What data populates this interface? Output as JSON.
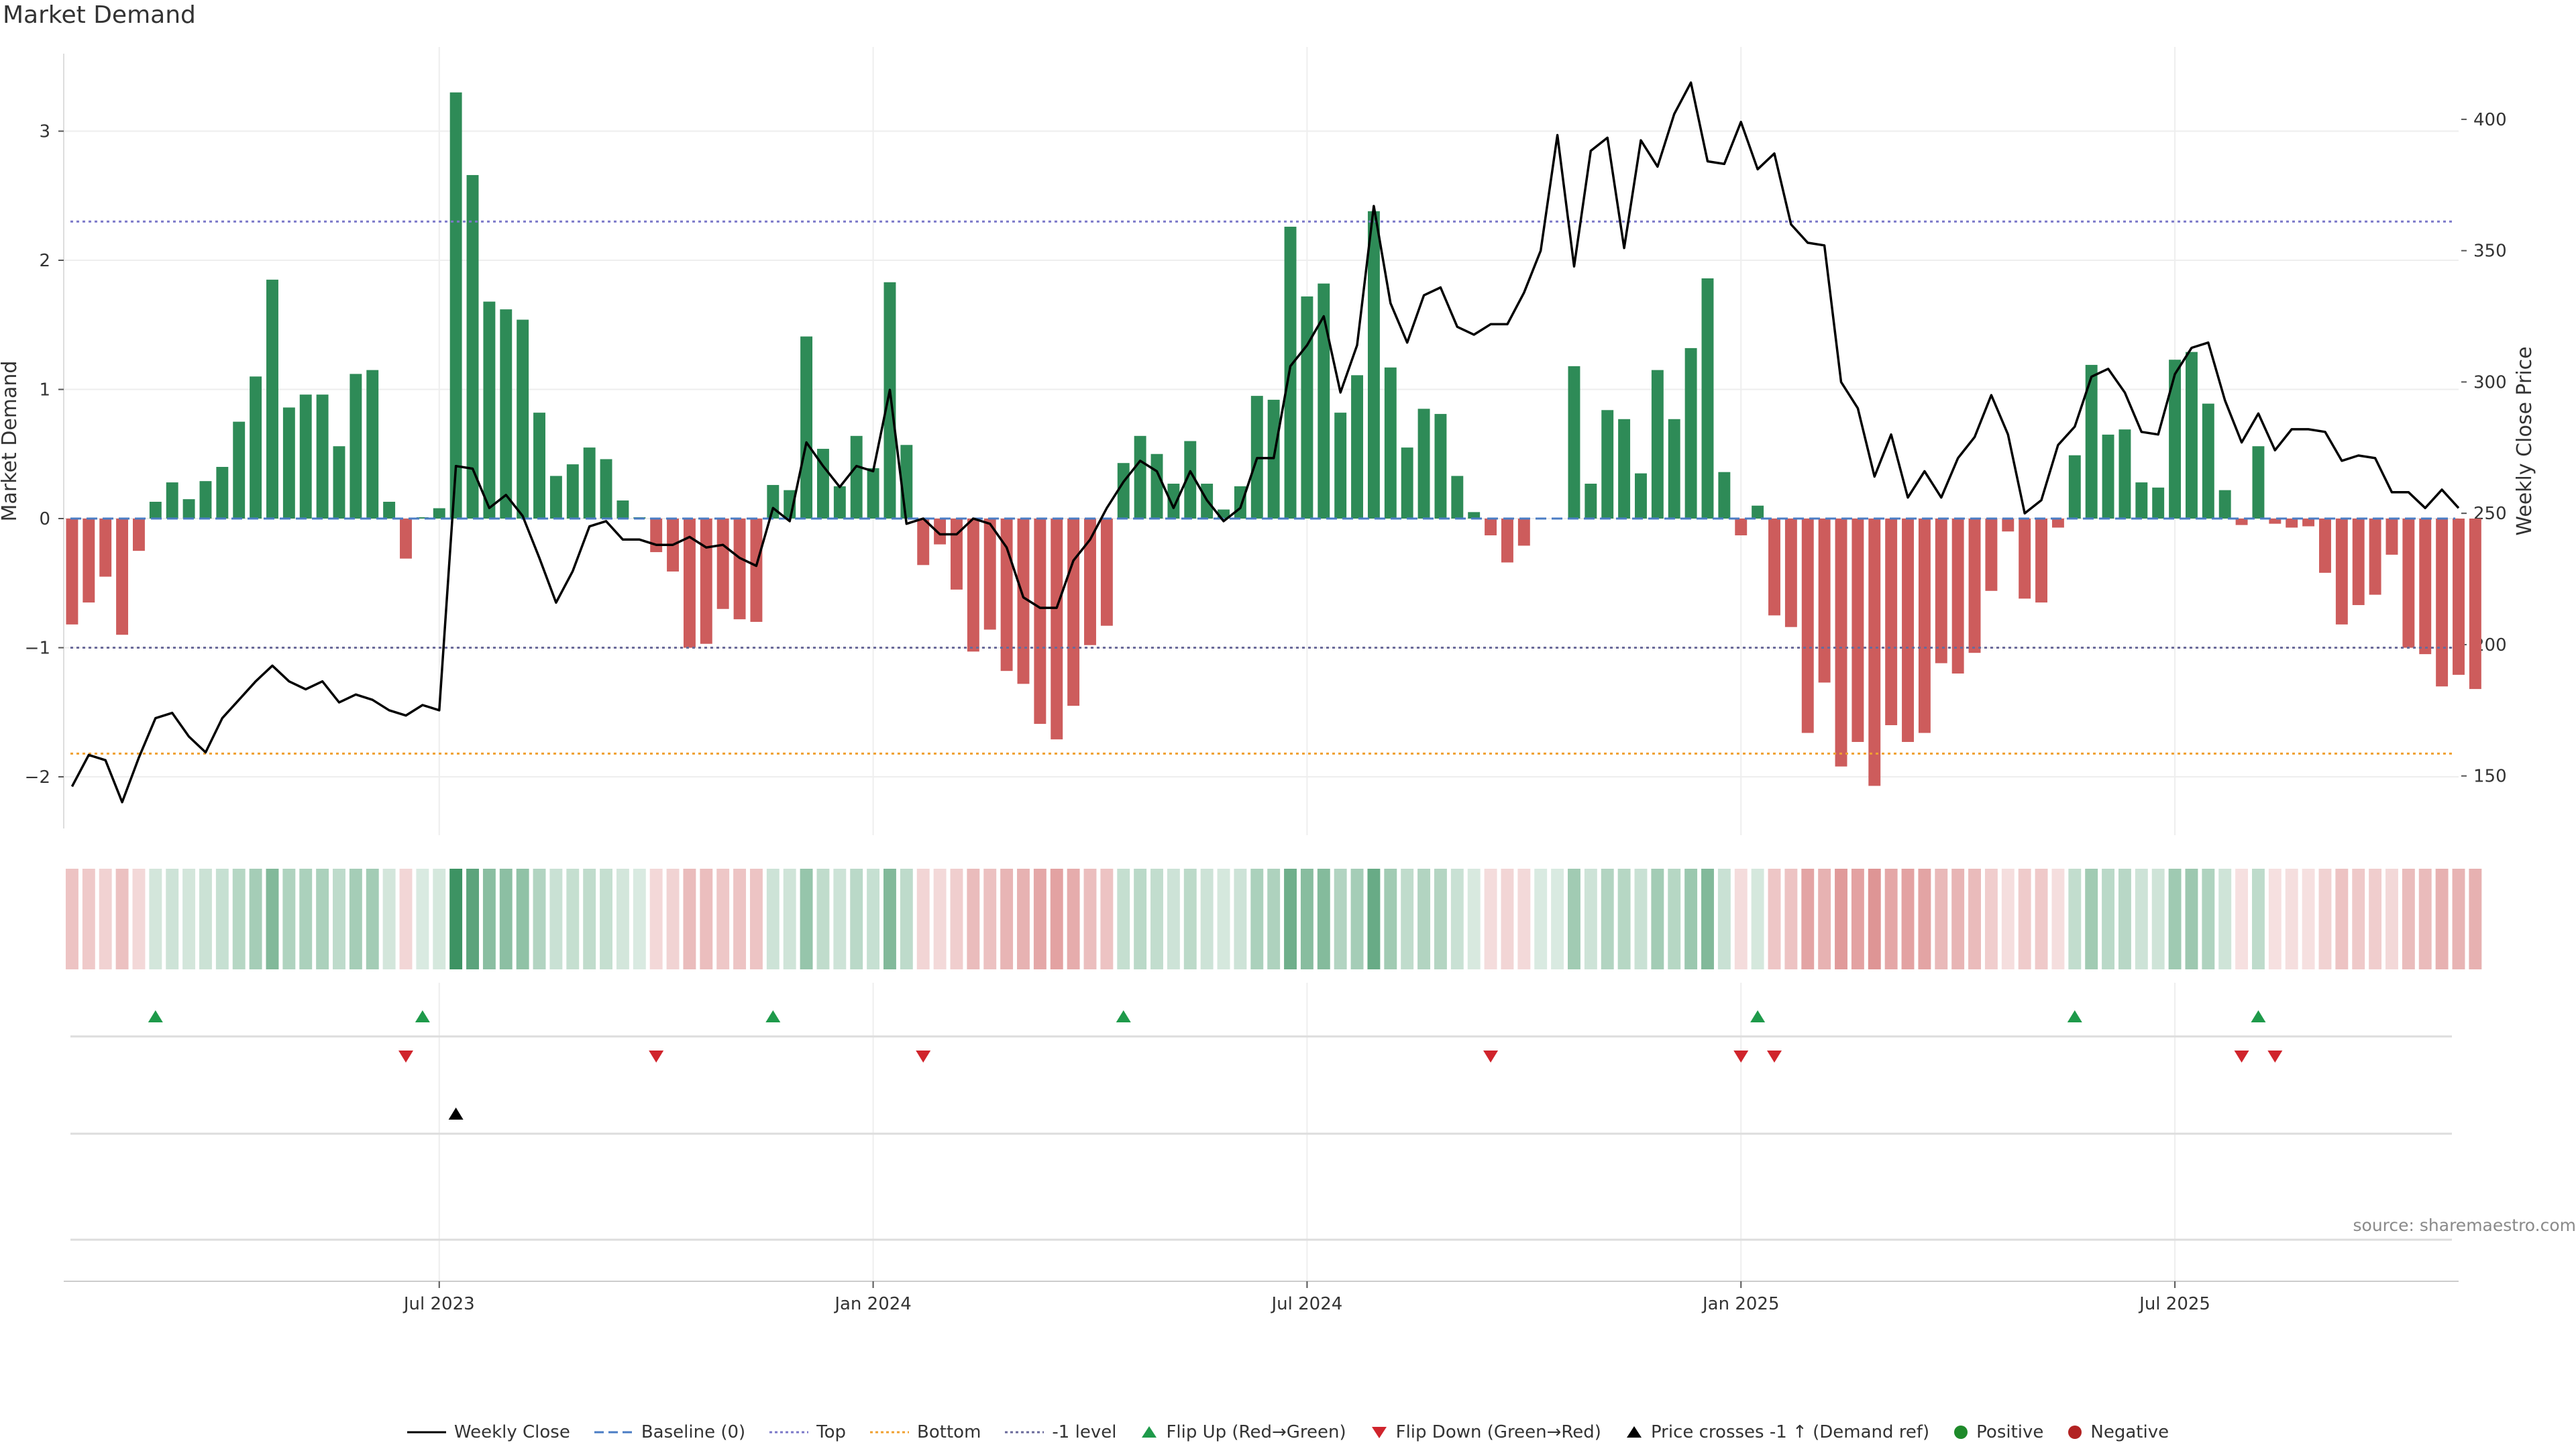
{
  "title": "Market Demand",
  "source": "source: sharemaestro.com",
  "legend": [
    {
      "label": "Weekly Close",
      "kind": "line-solid",
      "color": "#000000"
    },
    {
      "label": "Baseline (0)",
      "kind": "line-dashed",
      "color": "#4a7cc4"
    },
    {
      "label": "Top",
      "kind": "line-dotted",
      "color": "#7b78c9"
    },
    {
      "label": "Bottom",
      "kind": "line-dotted",
      "color": "#f0a030"
    },
    {
      "label": "-1 level",
      "kind": "line-dotted",
      "color": "#6a6a9a"
    },
    {
      "label": "Flip Up (Red→Green)",
      "kind": "tri-up",
      "color": "#1e9a4a"
    },
    {
      "label": "Flip Down (Green→Red)",
      "kind": "tri-down",
      "color": "#d0242c"
    },
    {
      "label": "Price crosses -1 ↑ (Demand ref)",
      "kind": "tri-up",
      "color": "#000000"
    },
    {
      "label": "Positive",
      "kind": "dot",
      "color": "#1e8a2a"
    },
    {
      "label": "Negative",
      "kind": "dot",
      "color": "#b22222"
    }
  ],
  "chart_data": {
    "type": "bar",
    "title": "Market Demand",
    "ylabel": "Market Demand",
    "y2label": "Weekly Close Price",
    "ylim": [
      -2.4,
      3.6
    ],
    "yticks": [
      -2,
      -1,
      0,
      1,
      2,
      3
    ],
    "ytick_labels": [
      "−2",
      "−1",
      "0",
      "1",
      "2",
      "3"
    ],
    "y2lim": [
      130,
      425
    ],
    "y2ticks": [
      150,
      200,
      250,
      300,
      350,
      400
    ],
    "xlim": [
      0,
      143.5
    ],
    "xticks": [
      {
        "i": 22,
        "label": "Jul 2023"
      },
      {
        "i": 48,
        "label": "Jan 2024"
      },
      {
        "i": 74,
        "label": "Jul 2024"
      },
      {
        "i": 100,
        "label": "Jan 2025"
      },
      {
        "i": 126,
        "label": "Jul 2025"
      }
    ],
    "ref_lines": {
      "top": 2.3,
      "minus1": -1.0,
      "bottom": -1.82
    },
    "colors": {
      "positive": "#2e8b57",
      "negative": "#cd5c5c",
      "price": "#000000",
      "baseline": "#4a7cc4",
      "top": "#7b78c9",
      "bottom": "#f0a030",
      "minus1": "#6a6a9a",
      "flip_up": "#1e9a4a",
      "flip_down": "#d0242c",
      "cross": "#000000"
    },
    "demand": [
      -0.82,
      -0.65,
      -0.45,
      -0.9,
      -0.25,
      0.13,
      0.28,
      0.15,
      0.29,
      0.4,
      0.75,
      1.1,
      1.85,
      0.86,
      0.96,
      0.96,
      0.56,
      1.12,
      1.15,
      0.13,
      -0.31,
      0.01,
      0.08,
      3.3,
      2.66,
      1.68,
      1.62,
      1.54,
      0.82,
      0.33,
      0.42,
      0.55,
      0.46,
      0.14,
      0.01,
      -0.26,
      -0.41,
      -1.0,
      -0.97,
      -0.7,
      -0.78,
      -0.8,
      0.26,
      0.22,
      1.41,
      0.54,
      0.25,
      0.64,
      0.39,
      1.83,
      0.57,
      -0.36,
      -0.2,
      -0.55,
      -1.03,
      -0.86,
      -1.18,
      -1.28,
      -1.59,
      -1.71,
      -1.45,
      -0.98,
      -0.83,
      0.43,
      0.64,
      0.5,
      0.27,
      0.6,
      0.27,
      0.07,
      0.25,
      0.95,
      0.92,
      2.26,
      1.72,
      1.82,
      0.82,
      1.11,
      2.38,
      1.17,
      0.55,
      0.85,
      0.81,
      0.33,
      0.05,
      -0.13,
      -0.34,
      -0.21,
      0.0,
      0.0,
      1.18,
      0.27,
      0.84,
      0.77,
      0.35,
      1.15,
      0.77,
      1.32,
      1.86,
      0.36,
      -0.13,
      0.1,
      -0.75,
      -0.84,
      -1.66,
      -1.27,
      -1.92,
      -1.73,
      -2.07,
      -1.6,
      -1.73,
      -1.66,
      -1.12,
      -1.2,
      -1.04,
      -0.56,
      -0.1,
      -0.62,
      -0.65,
      -0.07,
      0.49,
      1.19,
      0.65,
      0.69,
      0.28,
      0.24,
      1.23,
      1.29,
      0.89,
      0.22,
      -0.05,
      0.56,
      -0.04,
      -0.07,
      -0.06,
      -0.42,
      -0.82,
      -0.67,
      -0.59,
      -0.28,
      -1.0,
      -1.05,
      -1.3,
      -1.21,
      -1.32
    ],
    "close": [
      146,
      158,
      156,
      140,
      157,
      172,
      174,
      165,
      159,
      172,
      179,
      186,
      192,
      186,
      183,
      186,
      178,
      181,
      179,
      175,
      173,
      177,
      175,
      268,
      267,
      252,
      257,
      249,
      233,
      216,
      228,
      245,
      247,
      240,
      240,
      238,
      238,
      241,
      237,
      238,
      233,
      230,
      252,
      247,
      277,
      268,
      260,
      268,
      266,
      297,
      246,
      248,
      242,
      242,
      248,
      246,
      237,
      218,
      214,
      214,
      232,
      240,
      252,
      262,
      270,
      266,
      252,
      266,
      255,
      247,
      252,
      271,
      271,
      306,
      314,
      325,
      296,
      314,
      367,
      330,
      315,
      333,
      336,
      321,
      318,
      322,
      322,
      334,
      350,
      394,
      344,
      388,
      393,
      351,
      392,
      382,
      402,
      414,
      384,
      383,
      399,
      381,
      387,
      360,
      353,
      352,
      300,
      290,
      264,
      280,
      256,
      266,
      256,
      271,
      279,
      295,
      280,
      250,
      255,
      276,
      283,
      302,
      305,
      296,
      281,
      280,
      303,
      313,
      315,
      293,
      277,
      288,
      274,
      282,
      282,
      281,
      270,
      272,
      271,
      258,
      258,
      252,
      259,
      252
    ]
  }
}
